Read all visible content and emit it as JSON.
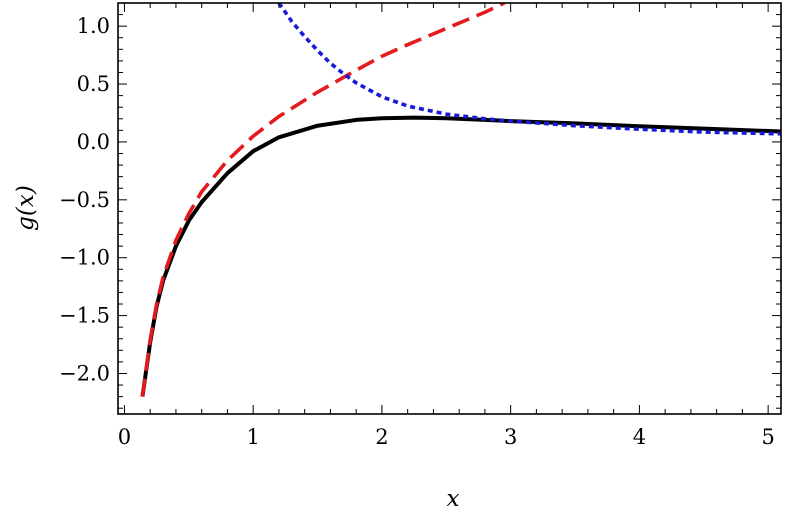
{
  "chart_data": {
    "type": "line",
    "title": "",
    "xlabel": "x",
    "ylabel": "g(x)",
    "xlim": [
      -0.05,
      5.1
    ],
    "ylim": [
      -2.35,
      1.2
    ],
    "xticks": [
      {
        "value": 0,
        "label": "0"
      },
      {
        "value": 1,
        "label": "1"
      },
      {
        "value": 2,
        "label": "2"
      },
      {
        "value": 3,
        "label": "3"
      },
      {
        "value": 4,
        "label": "4"
      },
      {
        "value": 5,
        "label": "5"
      }
    ],
    "yticks": [
      {
        "value": -2.0,
        "label": "−2.0"
      },
      {
        "value": -1.5,
        "label": "−1.5"
      },
      {
        "value": -1.0,
        "label": "−1.0"
      },
      {
        "value": -0.5,
        "label": "−0.5"
      },
      {
        "value": 0.0,
        "label": "0.0"
      },
      {
        "value": 0.5,
        "label": "0.5"
      },
      {
        "value": 1.0,
        "label": "1.0"
      }
    ],
    "grid": false,
    "legend": "none",
    "series": [
      {
        "style": "solid",
        "color": "#000000",
        "x": [
          0.14,
          0.2,
          0.25,
          0.3,
          0.4,
          0.5,
          0.6,
          0.8,
          1.0,
          1.2,
          1.5,
          1.8,
          2.0,
          2.25,
          2.5,
          2.8,
          3.0,
          3.5,
          4.0,
          4.5,
          5.1
        ],
        "y": [
          -2.2,
          -1.73,
          -1.42,
          -1.2,
          -0.9,
          -0.68,
          -0.52,
          -0.27,
          -0.08,
          0.04,
          0.14,
          0.19,
          0.205,
          0.21,
          0.205,
          0.19,
          0.18,
          0.16,
          0.135,
          0.115,
          0.09
        ]
      },
      {
        "style": "dashed",
        "color": "#e41a1c",
        "x": [
          0.14,
          0.2,
          0.25,
          0.3,
          0.4,
          0.5,
          0.6,
          0.8,
          1.0,
          1.2,
          1.5,
          1.8,
          2.0,
          2.2,
          2.5,
          2.8,
          2.95
        ],
        "y": [
          -2.2,
          -1.71,
          -1.4,
          -1.17,
          -0.85,
          -0.62,
          -0.43,
          -0.16,
          0.05,
          0.22,
          0.43,
          0.62,
          0.74,
          0.84,
          0.98,
          1.12,
          1.2
        ]
      },
      {
        "style": "dotted",
        "color": "#1a1adb",
        "x": [
          1.2,
          1.3,
          1.4,
          1.5,
          1.6,
          1.7,
          1.8,
          2.0,
          2.2,
          2.5,
          2.8,
          3.0,
          3.5,
          4.0,
          4.5,
          5.1
        ],
        "y": [
          1.2,
          1.04,
          0.91,
          0.79,
          0.68,
          0.59,
          0.51,
          0.39,
          0.31,
          0.24,
          0.2,
          0.18,
          0.14,
          0.11,
          0.085,
          0.07
        ]
      }
    ]
  }
}
